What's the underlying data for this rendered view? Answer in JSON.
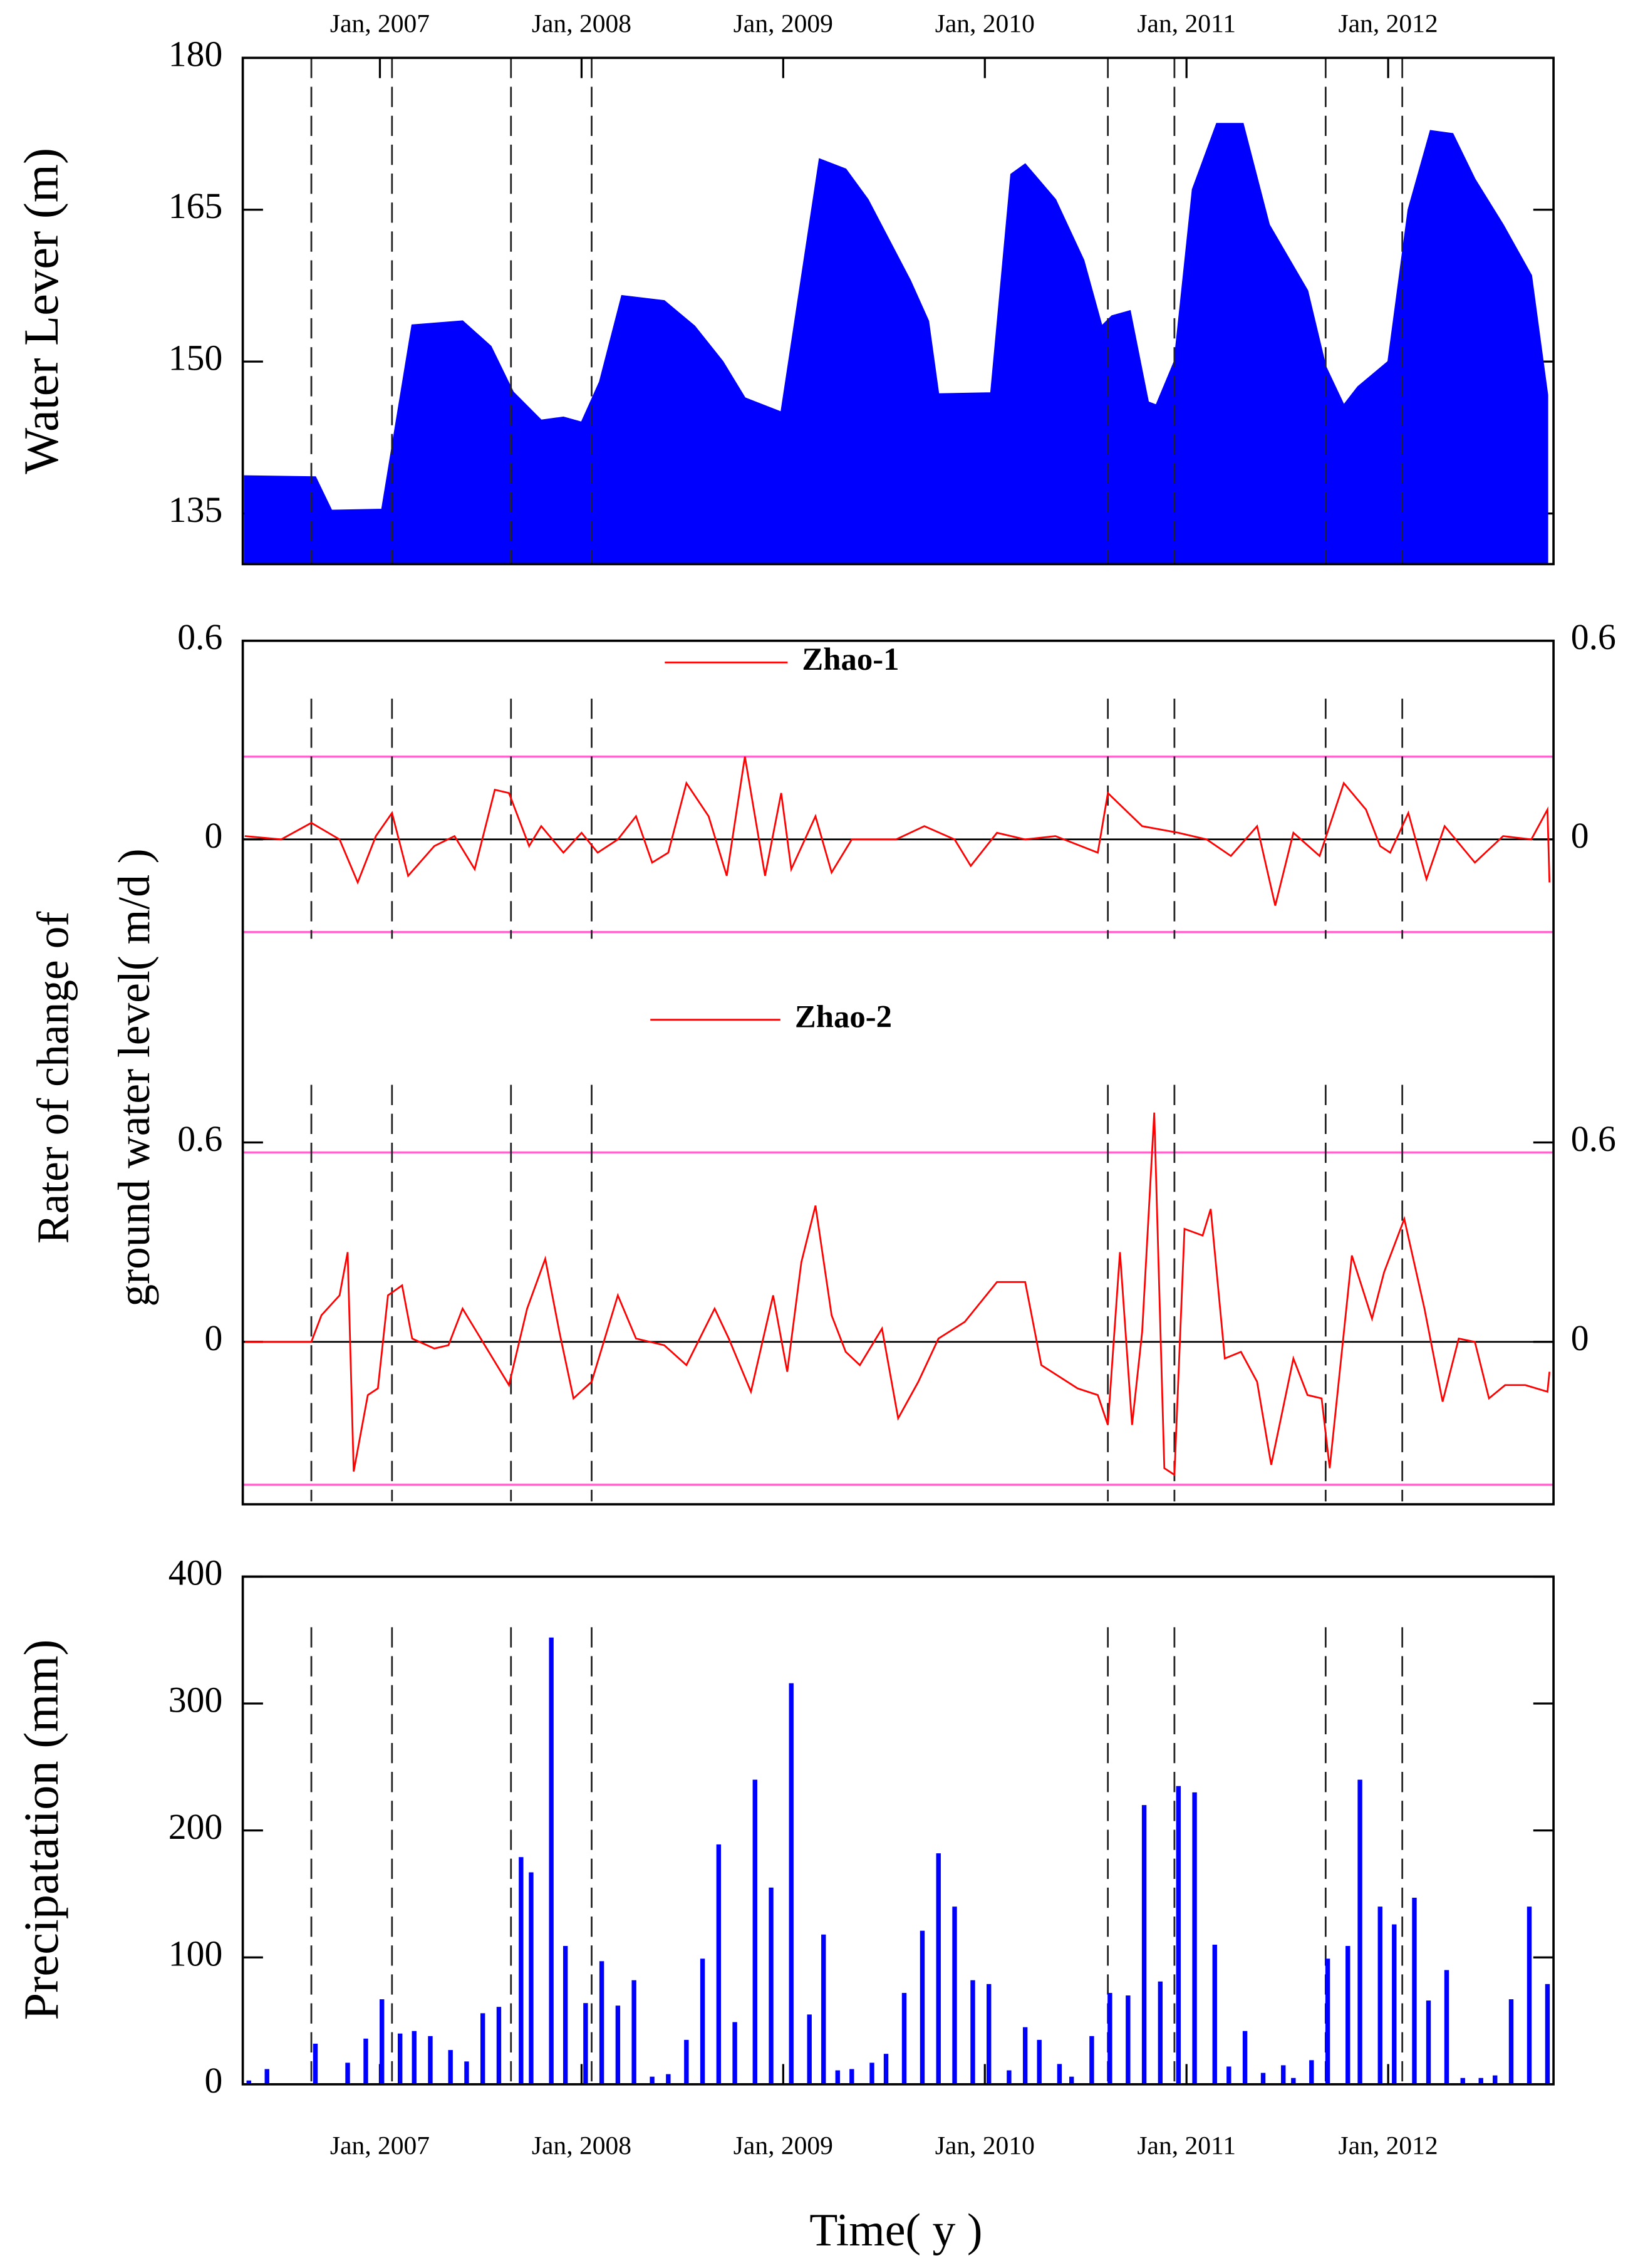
{
  "chart_data": [
    {
      "type": "area",
      "ylabel": "Water Lever (m)",
      "color": "#0000ff",
      "x": [
        2006.33,
        2006.68,
        2006.76,
        2007.01,
        2007.16,
        2007.41,
        2007.55,
        2007.66,
        2007.8,
        2007.91,
        2008.0,
        2008.09,
        2008.2,
        2008.41,
        2008.56,
        2008.7,
        2008.81,
        2008.99,
        2009.18,
        2009.31,
        2009.42,
        2009.63,
        2009.72,
        2009.77,
        2010.03,
        2010.13,
        2010.2,
        2010.35,
        2010.49,
        2010.58,
        2010.63,
        2010.72,
        2010.81,
        2010.85,
        2010.94,
        2011.03,
        2011.15,
        2011.28,
        2011.41,
        2011.6,
        2011.69,
        2011.78,
        2011.85,
        2012.0,
        2012.1,
        2012.21,
        2012.32,
        2012.43,
        2012.57,
        2012.71,
        2012.79
      ],
      "values": [
        138.7,
        138.6,
        135.3,
        135.4,
        153.6,
        154,
        151.5,
        147,
        144.2,
        144.5,
        144,
        148,
        156.5,
        156,
        153.5,
        150,
        146.4,
        145,
        170,
        169,
        166,
        158,
        154,
        146.8,
        146.9,
        168.5,
        169.5,
        166,
        160,
        153.5,
        154.5,
        155,
        146,
        145.7,
        150,
        167,
        173.5,
        173.5,
        163.5,
        157,
        149.5,
        145.7,
        147.5,
        150,
        165,
        172.8,
        172.5,
        168,
        163.5,
        158.5,
        146.7
      ],
      "xlim": [
        2006.32,
        2012.82
      ],
      "ylim": [
        130,
        180
      ],
      "yticks": [
        135,
        150,
        165,
        180
      ],
      "xticks": [
        {
          "value": 2007,
          "label": "Jan, 2007"
        },
        {
          "value": 2008,
          "label": "Jan, 2008"
        },
        {
          "value": 2009,
          "label": "Jan, 2009"
        },
        {
          "value": 2010,
          "label": "Jan, 2010"
        },
        {
          "value": 2011,
          "label": "Jan, 2011"
        },
        {
          "value": 2012,
          "label": "Jan, 2012"
        }
      ],
      "vlines": [
        2006.66,
        2007.06,
        2007.65,
        2008.05,
        2010.61,
        2010.94,
        2011.69,
        2012.07
      ]
    },
    {
      "type": "line",
      "ylabel": [
        "Rater of change of",
        "ground water level( m/d )"
      ],
      "series": [
        {
          "name": "Zhao-1",
          "color": "#ff0000",
          "x": [
            2006.33,
            2006.51,
            2006.66,
            2006.8,
            2006.89,
            2006.98,
            2007.06,
            2007.14,
            2007.27,
            2007.37,
            2007.47,
            2007.57,
            2007.64,
            2007.74,
            2007.8,
            2007.91,
            2008.0,
            2008.08,
            2008.18,
            2008.27,
            2008.35,
            2008.43,
            2008.52,
            2008.63,
            2008.72,
            2008.81,
            2008.91,
            2008.99,
            2009.04,
            2009.16,
            2009.24,
            2009.34,
            2009.56,
            2009.7,
            2009.85,
            2009.93,
            2010.06,
            2010.2,
            2010.35,
            2010.56,
            2010.61,
            2010.78,
            2010.96,
            2011.1,
            2011.22,
            2011.35,
            2011.44,
            2011.53,
            2011.66,
            2011.78,
            2011.89,
            2011.96,
            2012.01,
            2012.1,
            2012.19,
            2012.28,
            2012.43,
            2012.57,
            2012.71,
            2012.79,
            2012.8
          ],
          "values": [
            0.01,
            0,
            0.05,
            0,
            -0.13,
            0.01,
            0.08,
            -0.11,
            -0.02,
            0.01,
            -0.09,
            0.15,
            0.14,
            -0.02,
            0.04,
            -0.04,
            0.02,
            -0.04,
            0,
            0.07,
            -0.07,
            -0.04,
            0.17,
            0.07,
            -0.11,
            0.25,
            -0.11,
            0.14,
            -0.09,
            0.07,
            -0.1,
            0,
            0,
            0.04,
            0,
            -0.08,
            0.02,
            0,
            0.01,
            -0.04,
            0.14,
            0.04,
            0.02,
            0,
            -0.05,
            0.04,
            -0.2,
            0.02,
            -0.05,
            0.17,
            0.09,
            -0.02,
            -0.04,
            0.08,
            -0.12,
            0.04,
            -0.07,
            0.01,
            0,
            0.09,
            -0.13
          ]
        }
      ],
      "xlim": [
        2006.32,
        2012.82
      ],
      "ylim": [
        -0.3,
        0.6
      ],
      "yticks": [
        0,
        0.6
      ],
      "hlines": [
        0.25,
        -0.28
      ],
      "hline_color": "#ff66cc",
      "vlines": [
        2006.66,
        2007.06,
        2007.65,
        2008.05,
        2010.61,
        2010.94,
        2011.69,
        2012.07
      ]
    },
    {
      "type": "line",
      "series": [
        {
          "name": "Zhao-2",
          "color": "#ff0000",
          "x": [
            2006.33,
            2006.66,
            2006.71,
            2006.8,
            2006.84,
            2006.87,
            2006.94,
            2006.99,
            2007.04,
            2007.11,
            2007.16,
            2007.27,
            2007.34,
            2007.41,
            2007.52,
            2007.64,
            2007.73,
            2007.82,
            2007.89,
            2007.96,
            2008.05,
            2008.18,
            2008.27,
            2008.41,
            2008.52,
            2008.66,
            2008.73,
            2008.84,
            2008.95,
            2009.02,
            2009.09,
            2009.16,
            2009.24,
            2009.31,
            2009.38,
            2009.49,
            2009.57,
            2009.67,
            2009.77,
            2009.9,
            2010.06,
            2010.2,
            2010.28,
            2010.46,
            2010.56,
            2010.61,
            2010.67,
            2010.73,
            2010.78,
            2010.84,
            2010.89,
            2010.94,
            2010.99,
            2011.08,
            2011.12,
            2011.19,
            2011.27,
            2011.35,
            2011.42,
            2011.53,
            2011.6,
            2011.67,
            2011.71,
            2011.82,
            2011.92,
            2011.98,
            2012.08,
            2012.18,
            2012.27,
            2012.35,
            2012.43,
            2012.5,
            2012.58,
            2012.68,
            2012.79,
            2012.8
          ],
          "values": [
            0,
            0,
            0.08,
            0.14,
            0.27,
            -0.39,
            -0.16,
            -0.14,
            0.14,
            0.17,
            0.01,
            -0.02,
            -0.01,
            0.1,
            -0.01,
            -0.13,
            0.1,
            0.25,
            0.03,
            -0.17,
            -0.12,
            0.14,
            0.01,
            -0.01,
            -0.07,
            0.1,
            0.01,
            -0.15,
            0.14,
            -0.09,
            0.24,
            0.41,
            0.08,
            -0.03,
            -0.07,
            0.04,
            -0.23,
            -0.12,
            0.01,
            0.06,
            0.18,
            0.18,
            -0.07,
            -0.14,
            -0.16,
            -0.25,
            0.27,
            -0.25,
            0.03,
            0.69,
            -0.38,
            -0.4,
            0.34,
            0.32,
            0.4,
            -0.05,
            -0.03,
            -0.12,
            -0.37,
            -0.05,
            -0.16,
            -0.17,
            -0.38,
            0.26,
            0.07,
            0.21,
            0.37,
            0.1,
            -0.18,
            0.01,
            0,
            -0.17,
            -0.13,
            -0.13,
            -0.15,
            -0.09
          ]
        }
      ],
      "xlim": [
        2006.32,
        2012.82
      ],
      "ylim": [
        -0.48,
        1.2
      ],
      "yticks": [
        0,
        0.6
      ],
      "hlines": [
        0.57,
        -0.43
      ],
      "hline_color": "#ff66cc",
      "vlines": [
        2006.66,
        2007.06,
        2007.65,
        2008.05,
        2010.61,
        2010.94,
        2011.69,
        2012.07
      ]
    },
    {
      "type": "bar",
      "ylabel": "Precipatation (mm)",
      "xlabel": "Time(  y  )",
      "color": "#0000ff",
      "x": [
        2006.35,
        2006.44,
        2006.68,
        2006.84,
        2006.93,
        2007.01,
        2007.1,
        2007.17,
        2007.25,
        2007.35,
        2007.43,
        2007.51,
        2007.59,
        2007.7,
        2007.75,
        2007.85,
        2007.92,
        2008.02,
        2008.1,
        2008.18,
        2008.26,
        2008.35,
        2008.43,
        2008.52,
        2008.6,
        2008.68,
        2008.76,
        2008.86,
        2008.94,
        2009.04,
        2009.13,
        2009.2,
        2009.27,
        2009.34,
        2009.44,
        2009.51,
        2009.6,
        2009.69,
        2009.77,
        2009.85,
        2009.94,
        2010.02,
        2010.12,
        2010.2,
        2010.27,
        2010.37,
        2010.43,
        2010.53,
        2010.62,
        2010.71,
        2010.79,
        2010.87,
        2010.96,
        2011.04,
        2011.14,
        2011.21,
        2011.29,
        2011.38,
        2011.48,
        2011.53,
        2011.62,
        2011.7,
        2011.8,
        2011.86,
        2011.96,
        2012.03,
        2012.13,
        2012.2,
        2012.29,
        2012.37,
        2012.46,
        2012.53,
        2012.61,
        2012.7,
        2012.79
      ],
      "values": [
        3,
        12,
        32,
        17,
        36,
        67,
        40,
        42,
        38,
        27,
        18,
        56,
        61,
        179,
        167,
        352,
        109,
        64,
        97,
        62,
        82,
        6,
        8,
        35,
        99,
        189,
        49,
        240,
        155,
        316,
        55,
        118,
        11,
        12,
        17,
        24,
        72,
        121,
        182,
        140,
        82,
        79,
        11,
        45,
        35,
        16,
        6,
        38,
        72,
        70,
        220,
        81,
        235,
        230,
        110,
        14,
        42,
        9,
        15,
        5,
        19,
        99,
        109,
        240,
        140,
        126,
        147,
        66,
        90,
        5,
        5,
        7,
        67,
        140,
        79
      ],
      "xlim": [
        2006.32,
        2012.82
      ],
      "ylim": [
        0,
        400
      ],
      "yticks": [
        0,
        100,
        200,
        300,
        400
      ],
      "xticks": [
        {
          "value": 2007,
          "label": "Jan, 2007"
        },
        {
          "value": 2008,
          "label": "Jan, 2008"
        },
        {
          "value": 2009,
          "label": "Jan, 2009"
        },
        {
          "value": 2010,
          "label": "Jan, 2010"
        },
        {
          "value": 2011,
          "label": "Jan, 2011"
        },
        {
          "value": 2012,
          "label": "Jan, 2012"
        }
      ],
      "vlines": [
        2006.66,
        2007.06,
        2007.65,
        2008.05,
        2010.61,
        2010.94,
        2011.69,
        2012.07
      ]
    }
  ]
}
